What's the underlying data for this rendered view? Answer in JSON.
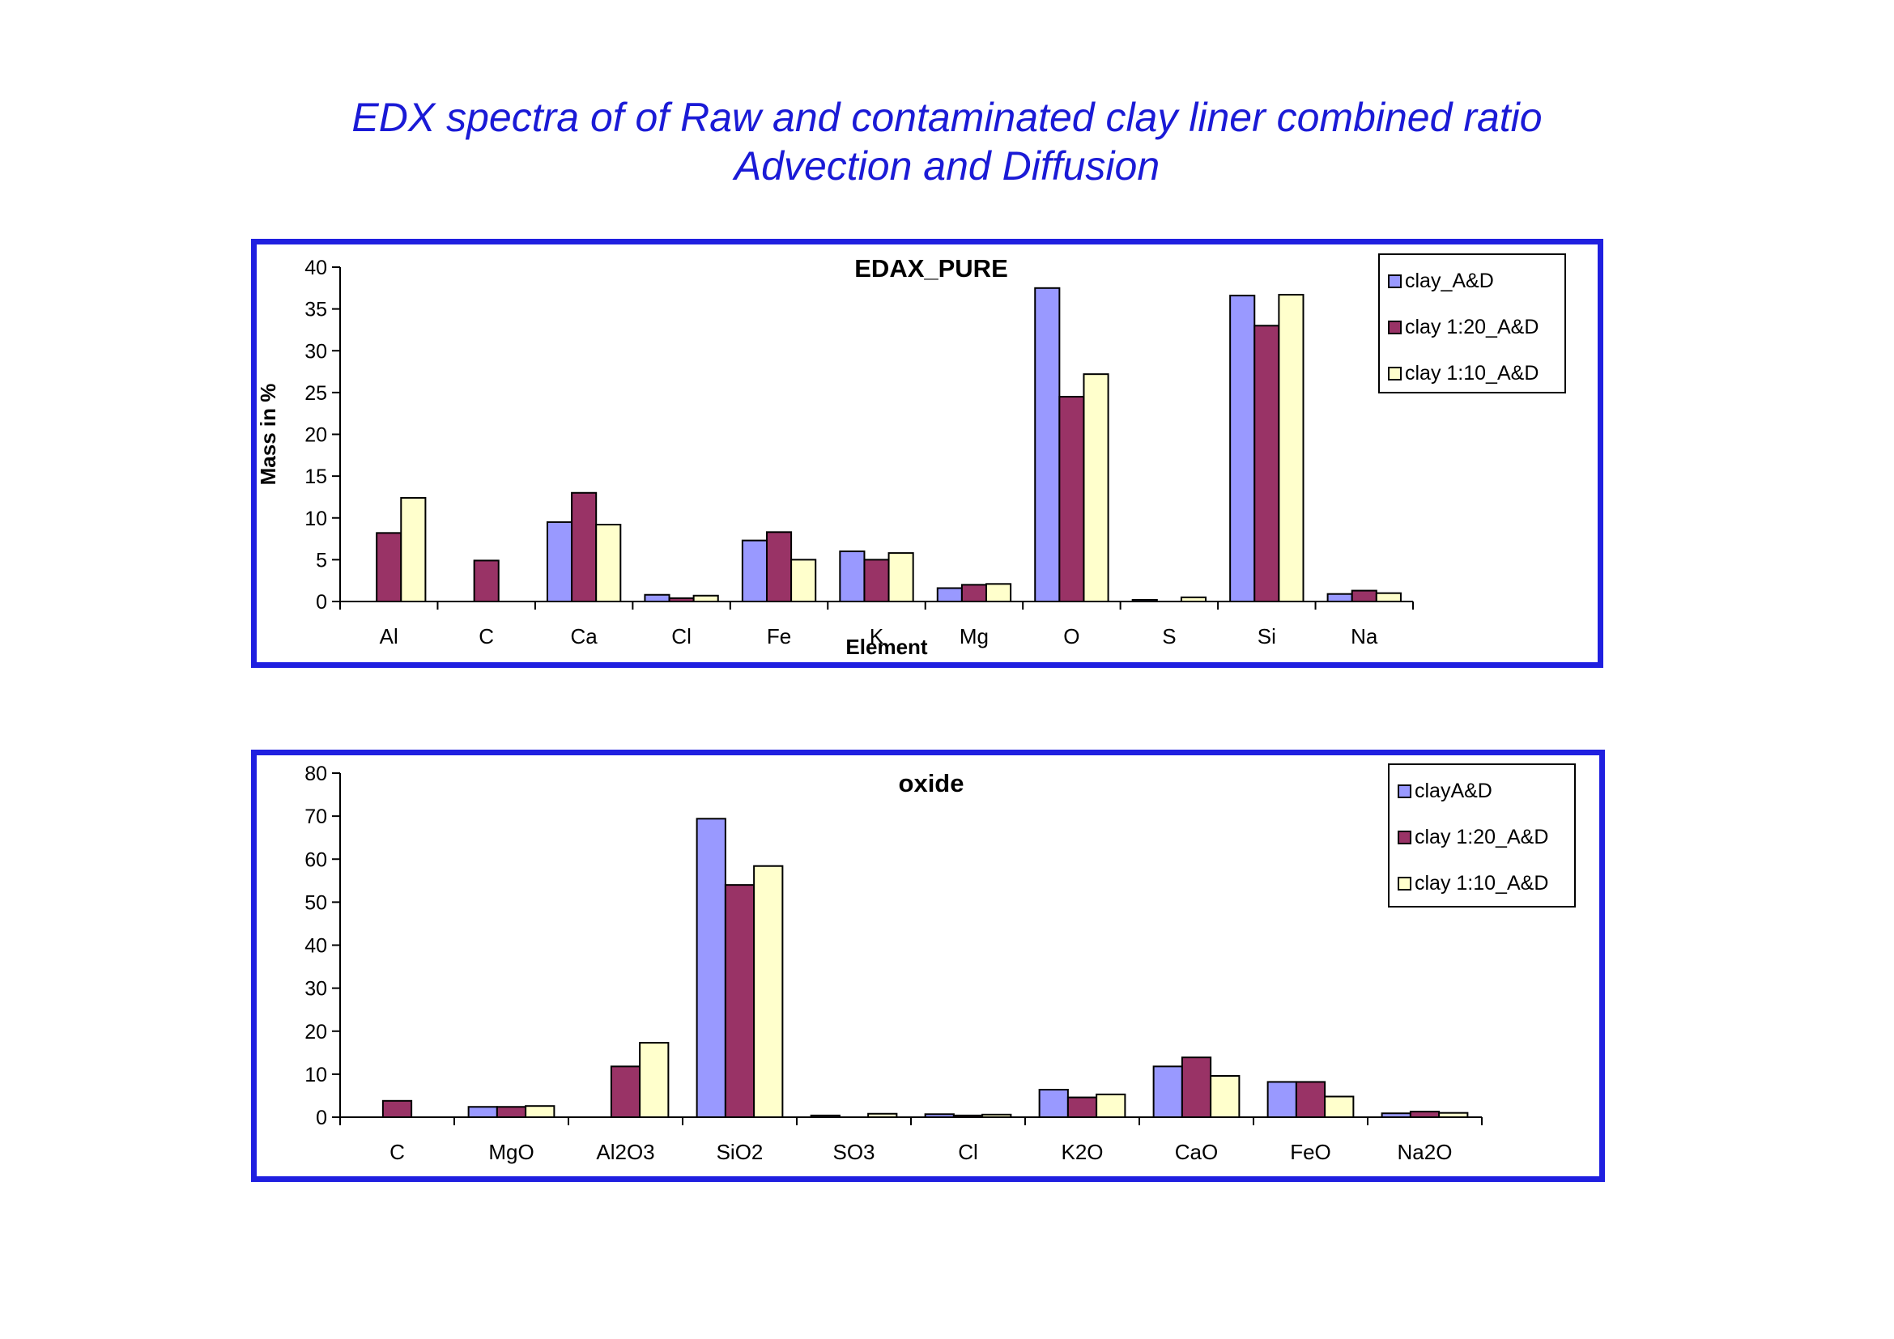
{
  "page": {
    "title_line_1": "EDX spectra of of  Raw and contaminated clay liner  combined ratio",
    "title_line_2": "Advection and Diffusion"
  },
  "colors": {
    "frame": "#1f1fe0",
    "title": "#1a1ad6",
    "series": [
      "#9999ff",
      "#993366",
      "#ffffcc"
    ]
  },
  "chart_data": [
    {
      "type": "bar",
      "title": "EDAX_PURE",
      "xlabel": "Element",
      "ylabel": "Mass in %",
      "ylim": [
        0,
        40
      ],
      "yticks": [
        0,
        5,
        10,
        15,
        20,
        25,
        30,
        35,
        40
      ],
      "grid": false,
      "legend_position": "top-right",
      "categories": [
        "Al",
        "C",
        "Ca",
        "Cl",
        "Fe",
        "K",
        "Mg",
        "O",
        "S",
        "Si",
        "Na"
      ],
      "series": [
        {
          "name": "clay_A&D",
          "values": [
            0,
            0,
            9.5,
            0.8,
            7.3,
            6.0,
            1.6,
            37.5,
            0.2,
            36.6,
            0.9
          ]
        },
        {
          "name": "clay 1:20_A&D",
          "values": [
            8.2,
            4.9,
            13.0,
            0.4,
            8.3,
            5.0,
            2.0,
            24.5,
            0,
            33.0,
            1.3
          ]
        },
        {
          "name": "clay 1:10_A&D",
          "values": [
            12.4,
            0,
            9.2,
            0.7,
            5.0,
            5.8,
            2.1,
            27.2,
            0.5,
            36.7,
            1.0
          ]
        }
      ]
    },
    {
      "type": "bar",
      "title": "oxide",
      "xlabel": "",
      "ylabel": "",
      "ylim": [
        0,
        80
      ],
      "yticks": [
        0,
        10,
        20,
        30,
        40,
        50,
        60,
        70,
        80
      ],
      "grid": false,
      "legend_position": "top-right",
      "categories": [
        "C",
        "MgO",
        "Al2O3",
        "SiO2",
        "SO3",
        "Cl",
        "K2O",
        "CaO",
        "FeO",
        "Na2O"
      ],
      "series": [
        {
          "name": "clayA&D",
          "values": [
            0,
            2.4,
            0,
            69.4,
            0.4,
            0.7,
            6.4,
            11.8,
            8.2,
            0.9
          ]
        },
        {
          "name": "clay 1:20_A&D",
          "values": [
            3.8,
            2.4,
            11.8,
            54.0,
            0,
            0.4,
            4.6,
            13.9,
            8.2,
            1.3
          ]
        },
        {
          "name": "clay 1:10_A&D",
          "values": [
            0,
            2.6,
            17.3,
            58.4,
            0.8,
            0.6,
            5.3,
            9.6,
            4.8,
            1.0
          ]
        }
      ]
    }
  ]
}
